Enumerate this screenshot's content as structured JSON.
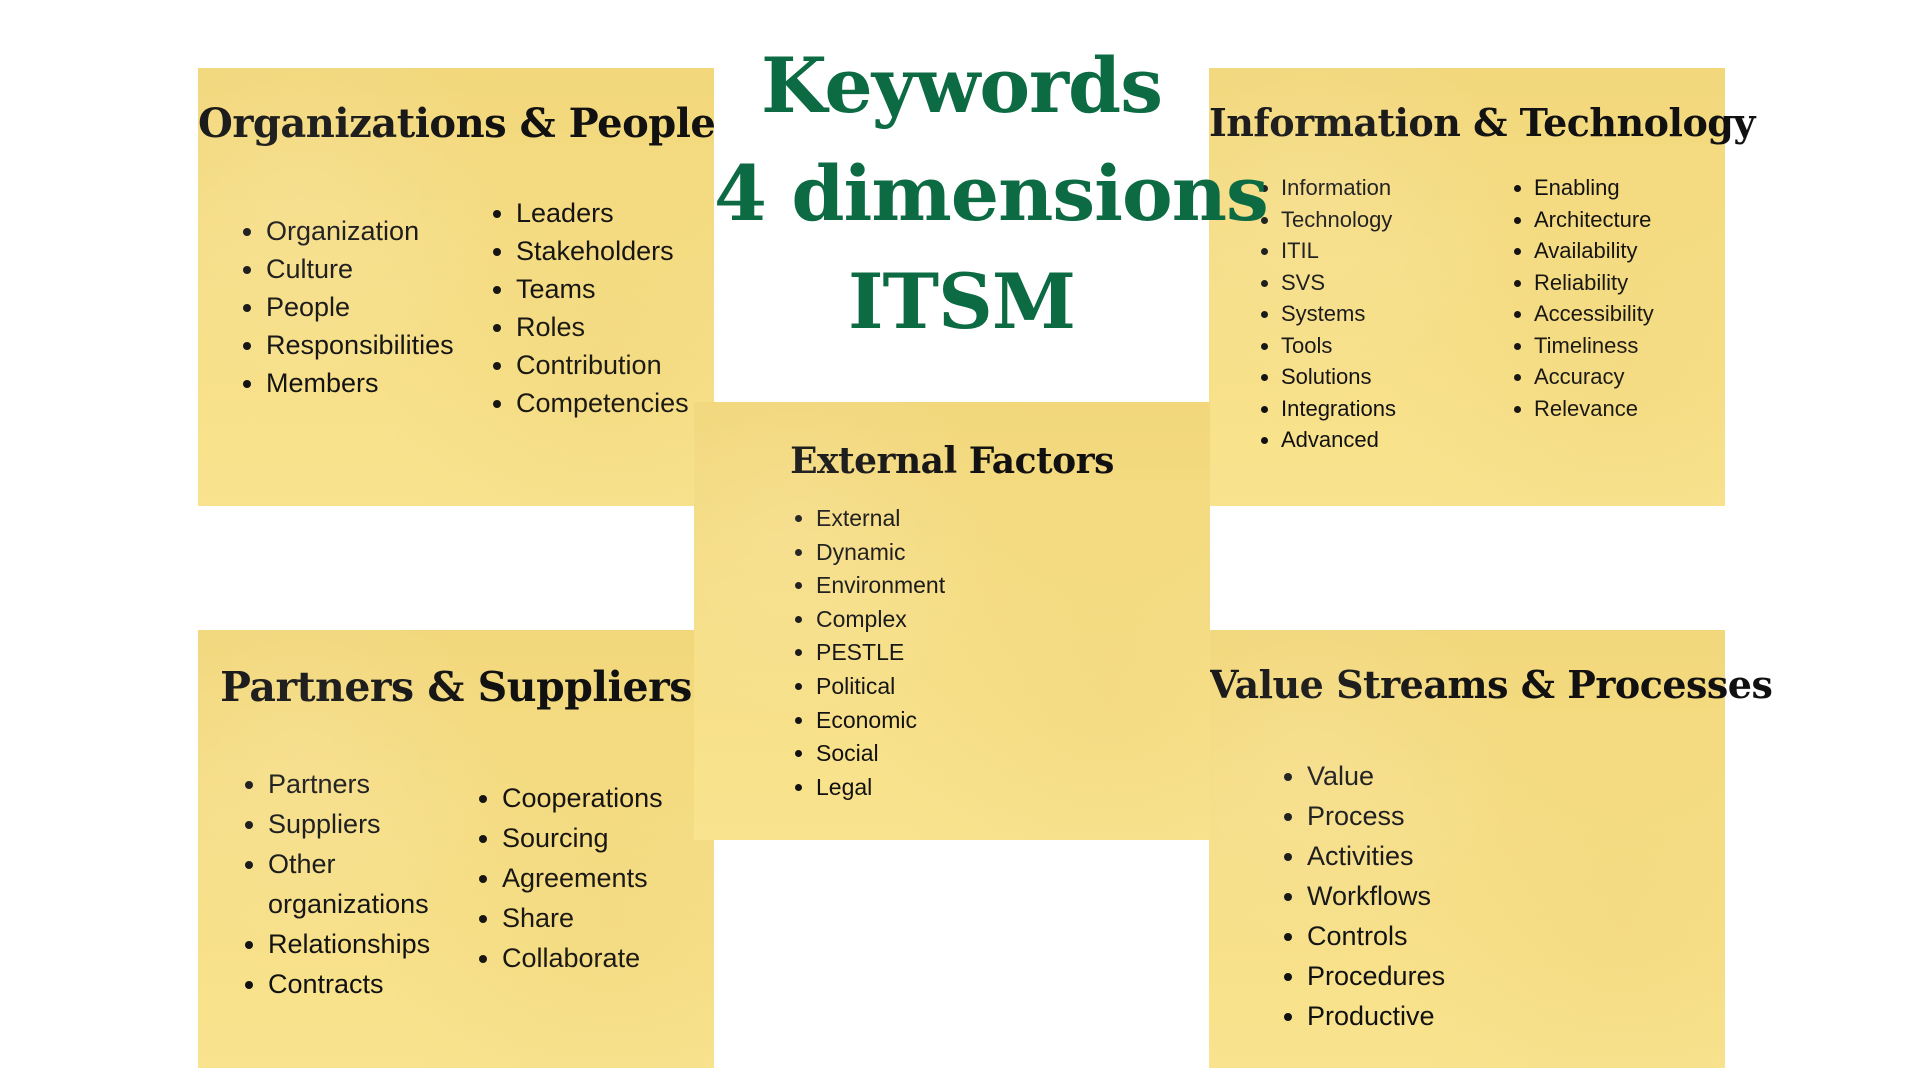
{
  "heading": {
    "line1": "Keywords",
    "line2": "4 dimensions",
    "line3": "ITSM",
    "color": "#0c6b43"
  },
  "notes": {
    "org": {
      "title": "Organizations & People",
      "col1": [
        "Organization",
        "Culture",
        "People",
        "Responsibilities",
        "Members"
      ],
      "col2": [
        "Leaders",
        "Stakeholders",
        "Teams",
        "Roles",
        "Contribution",
        "Competencies"
      ]
    },
    "info": {
      "title": "Information & Technology",
      "col1": [
        "Information",
        "Technology",
        "ITIL",
        "SVS",
        "Systems",
        "Tools",
        "Solutions",
        "Integrations",
        "Advanced"
      ],
      "col2": [
        "Enabling",
        "Architecture",
        "Availability",
        "Reliability",
        "Accessibility",
        "Timeliness",
        "Accuracy",
        "Relevance"
      ]
    },
    "ext": {
      "title": "External Factors",
      "col1": [
        "External",
        "Dynamic",
        "Environment",
        "Complex",
        "PESTLE",
        "Political",
        "Economic",
        "Social",
        "Legal"
      ]
    },
    "part": {
      "title": "Partners & Suppliers",
      "col1": [
        "Partners",
        "Suppliers",
        "Other organizations",
        "Relationships",
        "Contracts"
      ],
      "col2": [
        "Cooperations",
        "Sourcing",
        "Agreements",
        "Share",
        "Collaborate"
      ]
    },
    "val": {
      "title": "Value Streams & Processes",
      "col1": [
        "Value",
        "Process",
        "Activities",
        "Workflows",
        "Controls",
        "Procedures",
        "Productive"
      ]
    }
  }
}
